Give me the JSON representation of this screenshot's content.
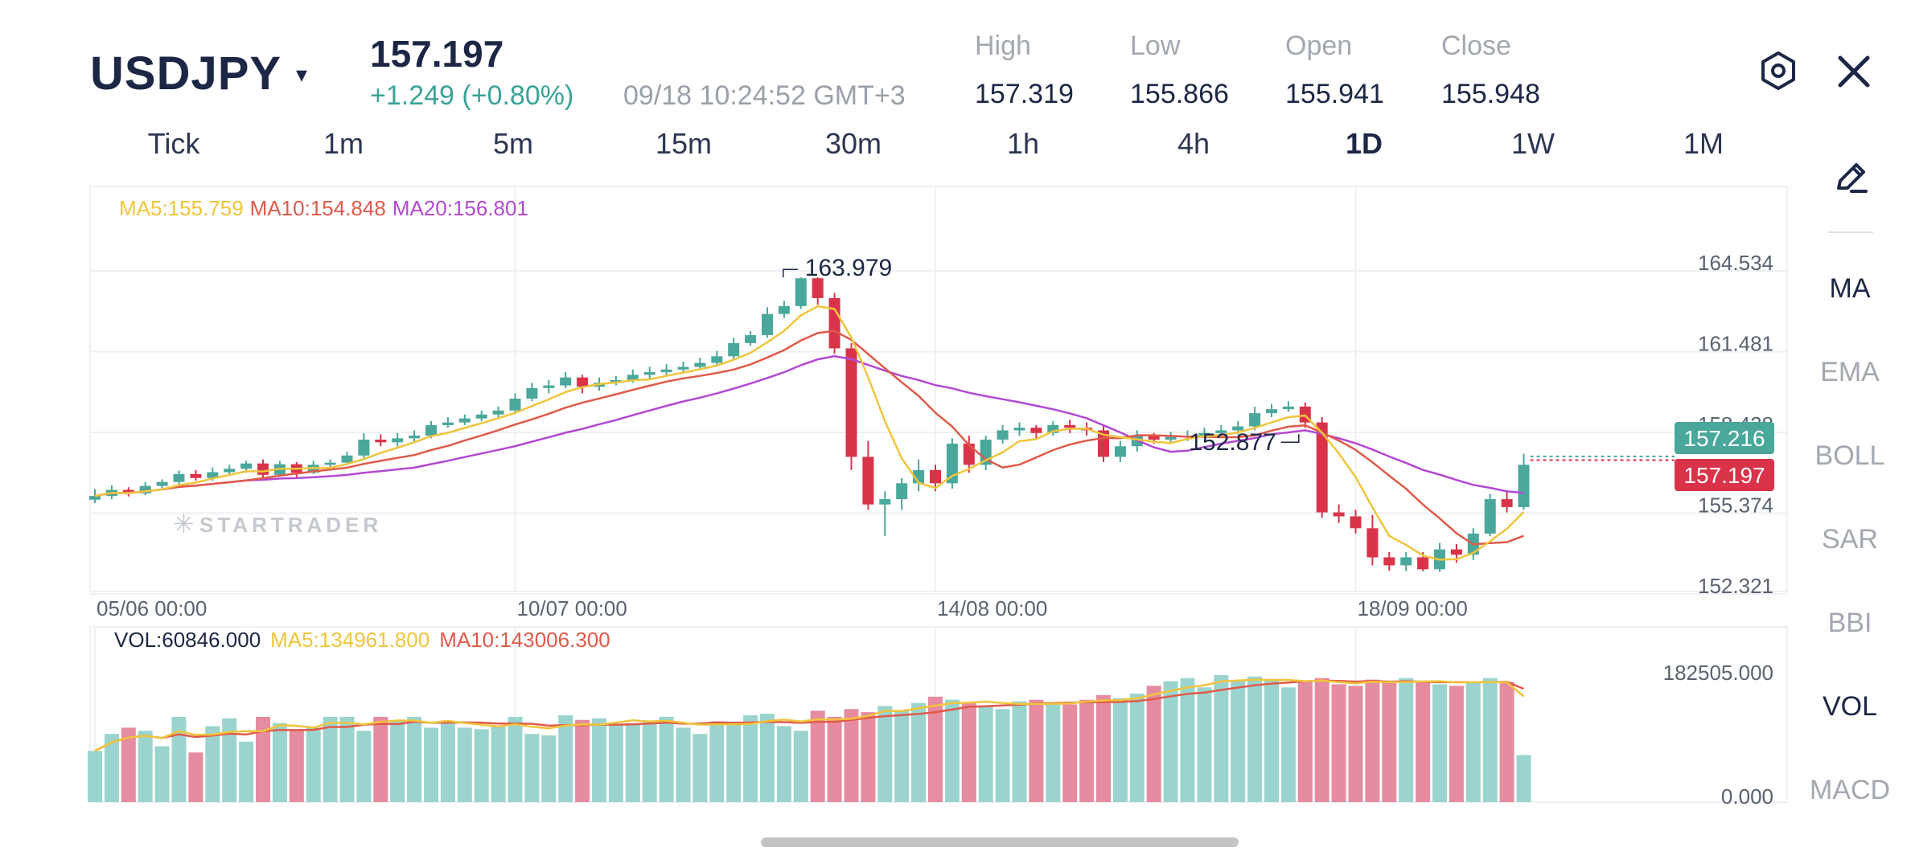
{
  "header": {
    "symbol": "USDJPY",
    "caret": "▾",
    "price": "157.197",
    "change": "+1.249 (+0.80%)",
    "timestamp": "09/18 10:24:52 GMT+3",
    "stats": [
      {
        "label": "High",
        "value": "157.319"
      },
      {
        "label": "Low",
        "value": "155.866"
      },
      {
        "label": "Open",
        "value": "155.941"
      },
      {
        "label": "Close",
        "value": "155.948"
      }
    ],
    "settings_icon": "hexagon-settings-icon",
    "close_icon": "close-icon",
    "close_glyph": "✕"
  },
  "timeframes": [
    "Tick",
    "1m",
    "5m",
    "15m",
    "30m",
    "1h",
    "4h",
    "1D",
    "1W",
    "1M"
  ],
  "active_timeframe": "1D",
  "side_panel": {
    "draw_icon": "pen-icon",
    "indicators": [
      "MA",
      "EMA",
      "BOLL",
      "SAR",
      "BBI",
      "VOL",
      "MACD"
    ],
    "active_indicators": [
      "MA",
      "VOL"
    ]
  },
  "colors": {
    "up": "#4aa79b",
    "down": "#d9334a",
    "ma5": "#f0c53c",
    "ma10": "#e05a4a",
    "ma20": "#b448d4",
    "grid": "#eef0f2",
    "vol_up": "#9bd4cf",
    "vol_down": "#e58ca0"
  },
  "watermark": "STARTRADER",
  "chart_data": {
    "type": "candlestick",
    "ma_legend": {
      "ma5": "MA5:155.759",
      "ma10": "MA10:154.848",
      "ma20": "MA20:156.801"
    },
    "y_ticks": [
      "164.534",
      "161.481",
      "158.428",
      "155.374",
      "152.321"
    ],
    "ylim": [
      152.321,
      164.534
    ],
    "x_ticks": [
      "05/06 00:00",
      "10/07 00:00",
      "14/08 00:00",
      "18/09 00:00"
    ],
    "x_tick_index": [
      0,
      25,
      50,
      75
    ],
    "last_price_labels": {
      "ask": "157.216",
      "bid": "157.197"
    },
    "high_marker": {
      "text": "163.979",
      "index": 42
    },
    "low_marker": {
      "text": "152.877",
      "index": 72
    },
    "candles": [
      [
        155.58,
        155.72,
        155.98,
        155.45
      ],
      [
        155.72,
        155.95,
        156.12,
        155.6
      ],
      [
        155.95,
        155.82,
        156.05,
        155.7
      ],
      [
        155.82,
        156.1,
        156.25,
        155.75
      ],
      [
        156.1,
        156.25,
        156.35,
        156.0
      ],
      [
        156.25,
        156.55,
        156.68,
        156.15
      ],
      [
        156.55,
        156.4,
        156.7,
        156.3
      ],
      [
        156.4,
        156.62,
        156.8,
        156.3
      ],
      [
        156.62,
        156.75,
        156.9,
        156.5
      ],
      [
        156.75,
        156.95,
        157.05,
        156.6
      ],
      [
        156.95,
        156.52,
        157.1,
        156.3
      ],
      [
        156.52,
        156.92,
        157.05,
        156.45
      ],
      [
        156.92,
        156.6,
        157.0,
        156.4
      ],
      [
        156.6,
        156.9,
        157.05,
        156.55
      ],
      [
        156.9,
        156.98,
        157.1,
        156.8
      ],
      [
        156.98,
        157.25,
        157.4,
        156.9
      ],
      [
        157.25,
        157.85,
        158.1,
        157.1
      ],
      [
        157.85,
        157.75,
        158.05,
        157.6
      ],
      [
        157.75,
        157.9,
        158.1,
        157.6
      ],
      [
        157.9,
        158.0,
        158.2,
        157.75
      ],
      [
        158.0,
        158.4,
        158.55,
        157.9
      ],
      [
        158.4,
        158.5,
        158.7,
        158.3
      ],
      [
        158.5,
        158.65,
        158.8,
        158.4
      ],
      [
        158.65,
        158.8,
        158.95,
        158.55
      ],
      [
        158.8,
        158.95,
        159.1,
        158.7
      ],
      [
        158.95,
        159.4,
        159.6,
        158.85
      ],
      [
        159.4,
        159.8,
        160.0,
        159.3
      ],
      [
        159.8,
        159.9,
        160.1,
        159.6
      ],
      [
        159.9,
        160.2,
        160.4,
        159.8
      ],
      [
        160.2,
        159.85,
        160.3,
        159.6
      ],
      [
        159.85,
        160.0,
        160.2,
        159.7
      ],
      [
        160.0,
        160.1,
        160.25,
        159.9
      ],
      [
        160.1,
        160.3,
        160.5,
        160.0
      ],
      [
        160.3,
        160.4,
        160.6,
        160.1
      ],
      [
        160.4,
        160.5,
        160.7,
        160.25
      ],
      [
        160.5,
        160.6,
        160.8,
        160.35
      ],
      [
        160.6,
        160.75,
        160.95,
        160.5
      ],
      [
        160.75,
        161.0,
        161.2,
        160.6
      ],
      [
        161.0,
        161.5,
        161.7,
        160.9
      ],
      [
        161.5,
        161.8,
        161.95,
        161.4
      ],
      [
        161.8,
        162.6,
        162.85,
        161.7
      ],
      [
        162.6,
        162.9,
        163.1,
        162.45
      ],
      [
        162.9,
        163.95,
        163.98,
        162.8
      ],
      [
        163.95,
        163.2,
        163.98,
        162.95
      ],
      [
        163.2,
        161.3,
        163.4,
        161.1
      ],
      [
        161.3,
        157.2,
        161.5,
        156.7
      ],
      [
        157.2,
        155.4,
        157.8,
        155.2
      ],
      [
        155.4,
        155.6,
        155.9,
        154.2
      ],
      [
        155.6,
        156.2,
        156.4,
        155.2
      ],
      [
        156.2,
        156.7,
        157.1,
        155.9
      ],
      [
        156.7,
        156.2,
        156.9,
        155.9
      ],
      [
        156.2,
        157.7,
        157.9,
        156.0
      ],
      [
        157.7,
        156.9,
        158.0,
        156.6
      ],
      [
        156.9,
        157.85,
        158.0,
        156.7
      ],
      [
        157.85,
        158.2,
        158.4,
        157.7
      ],
      [
        158.2,
        158.3,
        158.5,
        158.0
      ],
      [
        158.3,
        158.1,
        158.4,
        157.9
      ],
      [
        158.1,
        158.4,
        158.55,
        158.0
      ],
      [
        158.4,
        158.3,
        158.6,
        158.1
      ],
      [
        158.3,
        158.2,
        158.5,
        158.0
      ],
      [
        158.2,
        157.2,
        158.4,
        157.0
      ],
      [
        157.2,
        157.6,
        157.8,
        157.0
      ],
      [
        157.6,
        158.0,
        158.2,
        157.4
      ],
      [
        158.0,
        157.85,
        158.1,
        157.7
      ],
      [
        157.85,
        157.95,
        158.15,
        157.7
      ],
      [
        157.95,
        158.0,
        158.2,
        157.8
      ],
      [
        158.0,
        158.1,
        158.3,
        157.9
      ],
      [
        158.1,
        158.2,
        158.4,
        158.0
      ],
      [
        158.2,
        158.35,
        158.55,
        158.05
      ],
      [
        158.35,
        158.85,
        159.1,
        158.2
      ],
      [
        158.85,
        159.0,
        159.2,
        158.7
      ],
      [
        159.0,
        159.1,
        159.3,
        158.9
      ],
      [
        159.1,
        158.5,
        159.25,
        158.3
      ],
      [
        158.5,
        155.1,
        158.7,
        154.9
      ],
      [
        155.1,
        154.95,
        155.4,
        154.7
      ],
      [
        154.95,
        154.5,
        155.2,
        154.3
      ],
      [
        154.5,
        153.4,
        155.0,
        153.1
      ],
      [
        153.4,
        153.1,
        153.6,
        152.9
      ],
      [
        153.1,
        153.4,
        153.6,
        152.88
      ],
      [
        153.4,
        152.95,
        153.6,
        152.88
      ],
      [
        152.95,
        153.7,
        153.95,
        152.85
      ],
      [
        153.7,
        153.5,
        153.9,
        153.2
      ],
      [
        153.5,
        154.3,
        154.5,
        153.3
      ],
      [
        154.3,
        155.6,
        155.8,
        154.2
      ],
      [
        155.6,
        155.3,
        155.9,
        155.1
      ],
      [
        155.3,
        156.9,
        157.32,
        155.2
      ]
    ],
    "vol_legend": {
      "vol": "VOL:60846.000",
      "ma5": "MA5:134961.800",
      "ma10": "MA10:143006.300"
    },
    "vol_ticks": [
      "182505.000",
      "0.000"
    ],
    "vol_ylim": [
      0,
      182505
    ],
    "volumes": [
      66000,
      88000,
      96000,
      92000,
      72000,
      110000,
      64000,
      98000,
      108000,
      78000,
      110000,
      102000,
      94000,
      96000,
      110000,
      110000,
      92000,
      110000,
      104000,
      110000,
      96000,
      104000,
      96000,
      94000,
      98000,
      110000,
      88000,
      86000,
      112000,
      106000,
      108000,
      100000,
      102000,
      104000,
      110000,
      96000,
      88000,
      104000,
      104000,
      112000,
      114000,
      98000,
      92000,
      118000,
      110000,
      120000,
      116000,
      124000,
      118000,
      128000,
      136000,
      132000,
      128000,
      124000,
      120000,
      130000,
      132000,
      128000,
      126000,
      132000,
      138000,
      134000,
      140000,
      150000,
      156000,
      160000,
      148000,
      164000,
      156000,
      162000,
      158000,
      148000,
      156000,
      160000,
      152000,
      150000,
      158000,
      154000,
      160000,
      156000,
      152000,
      150000,
      156000,
      160000,
      155000,
      60846
    ]
  }
}
